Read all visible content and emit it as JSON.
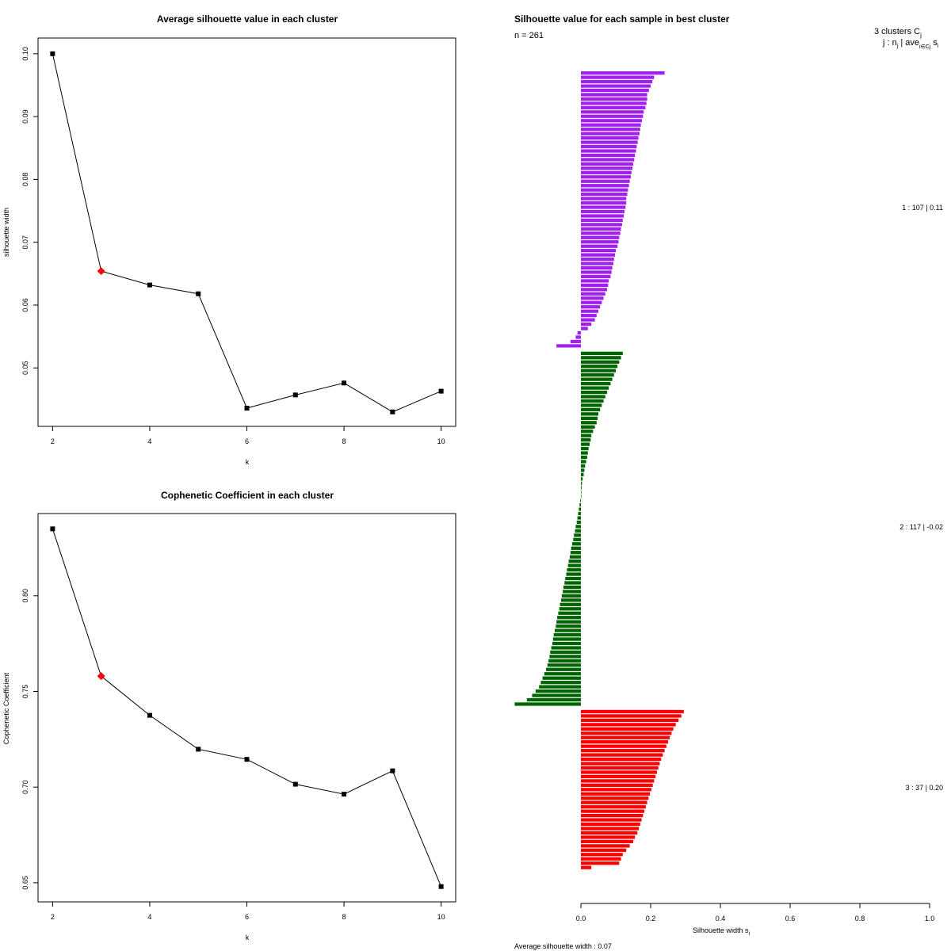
{
  "chart_data": [
    {
      "type": "line",
      "title": "Average silhouette value in each cluster",
      "xlabel": "k",
      "ylabel": "silhouette width",
      "x": [
        2,
        3,
        4,
        5,
        6,
        7,
        8,
        9,
        10
      ],
      "values": [
        0.1,
        0.0654,
        0.0632,
        0.0618,
        0.0436,
        0.0457,
        0.0476,
        0.043,
        0.0463
      ],
      "highlight_index": 1,
      "highlight_color": "#ff0000",
      "xlim": [
        1.7,
        10.3
      ],
      "ylim": [
        0.0407,
        0.1025
      ],
      "xticks": [
        2,
        4,
        6,
        8,
        10
      ],
      "xtick_labels": [
        "2",
        "4",
        "6",
        "8",
        "10"
      ],
      "yticks": [
        0.05,
        0.06,
        0.07,
        0.08,
        0.09,
        0.1
      ],
      "ytick_labels": [
        "0.05",
        "0.06",
        "0.07",
        "0.08",
        "0.09",
        "0.10"
      ]
    },
    {
      "type": "line",
      "title": "Cophenetic Coefficient in each cluster",
      "xlabel": "k",
      "ylabel": "Cophenetic Coefficient",
      "x": [
        2,
        3,
        4,
        5,
        6,
        7,
        8,
        9,
        10
      ],
      "values": [
        0.835,
        0.758,
        0.7375,
        0.7198,
        0.7145,
        0.7015,
        0.6963,
        0.7085,
        0.648
      ],
      "highlight_index": 1,
      "highlight_color": "#ff0000",
      "xlim": [
        1.7,
        10.3
      ],
      "ylim": [
        0.64,
        0.843
      ],
      "xticks": [
        2,
        4,
        6,
        8,
        10
      ],
      "xtick_labels": [
        "2",
        "4",
        "6",
        "8",
        "10"
      ],
      "yticks": [
        0.65,
        0.7,
        0.75,
        0.8
      ],
      "ytick_labels": [
        "0.65",
        "0.70",
        "0.75",
        "0.80"
      ]
    },
    {
      "type": "bar",
      "orientation": "horizontal",
      "title": "Silhouette value for each sample in best cluster",
      "n_label": "n = 261",
      "xlabel": "Silhouette width s",
      "xlabel_sub": "i",
      "xlim": [
        0,
        1
      ],
      "xticks": [
        0,
        0.2,
        0.4,
        0.6,
        0.8,
        1
      ],
      "xtick_labels": [
        "0.0",
        "0.2",
        "0.4",
        "0.6",
        "0.8",
        "1.0"
      ],
      "average_label": "Average silhouette width :  0.07",
      "header_line1": "3  clusters  C",
      "header_line1_sub": "j",
      "header_line2": "j :  n",
      "header_line2_sub": "j",
      "header_line2_rest": " | ave",
      "header_line2_sub2": "i∈Cj",
      "header_line2_end": " s",
      "header_line2_sub3": "i",
      "clusters": [
        {
          "id": 1,
          "n": 107,
          "avg": 0.11,
          "color": "#a020f0",
          "label": "1 :   107  |  0.11",
          "max": 0.24,
          "min": -0.07,
          "values": [
            0.24,
            0.21,
            0.205,
            0.2,
            0.195,
            0.19,
            0.19,
            0.188,
            0.185,
            0.18,
            0.178,
            0.175,
            0.172,
            0.17,
            0.168,
            0.165,
            0.163,
            0.16,
            0.158,
            0.155,
            0.153,
            0.15,
            0.148,
            0.145,
            0.143,
            0.14,
            0.138,
            0.135,
            0.133,
            0.13,
            0.13,
            0.128,
            0.125,
            0.123,
            0.12,
            0.118,
            0.115,
            0.113,
            0.11,
            0.108,
            0.105,
            0.1,
            0.098,
            0.095,
            0.093,
            0.09,
            0.088,
            0.085,
            0.08,
            0.078,
            0.075,
            0.07,
            0.065,
            0.06,
            0.055,
            0.05,
            0.045,
            0.04,
            0.03,
            0.02,
            -0.01,
            -0.015,
            -0.03,
            -0.07
          ]
        },
        {
          "id": 2,
          "n": 117,
          "avg": -0.02,
          "color": "#006400",
          "label": "2 :   117  |  -0.02",
          "max": 0.12,
          "min": -0.19,
          "values": [
            0.12,
            0.115,
            0.11,
            0.105,
            0.1,
            0.095,
            0.09,
            0.085,
            0.08,
            0.075,
            0.07,
            0.065,
            0.06,
            0.055,
            0.05,
            0.048,
            0.045,
            0.04,
            0.035,
            0.03,
            0.028,
            0.025,
            0.022,
            0.02,
            0.018,
            0.015,
            0.012,
            0.01,
            0.008,
            0.005,
            0.003,
            0.002,
            0.001,
            0.0,
            -0.002,
            -0.004,
            -0.006,
            -0.008,
            -0.01,
            -0.012,
            -0.015,
            -0.017,
            -0.02,
            -0.022,
            -0.025,
            -0.028,
            -0.03,
            -0.032,
            -0.035,
            -0.037,
            -0.04,
            -0.042,
            -0.045,
            -0.047,
            -0.05,
            -0.052,
            -0.055,
            -0.057,
            -0.06,
            -0.062,
            -0.065,
            -0.068,
            -0.07,
            -0.072,
            -0.075,
            -0.078,
            -0.08,
            -0.082,
            -0.085,
            -0.088,
            -0.09,
            -0.093,
            -0.096,
            -0.1,
            -0.105,
            -0.11,
            -0.115,
            -0.12,
            -0.13,
            -0.14,
            -0.155,
            -0.19
          ]
        },
        {
          "id": 3,
          "n": 37,
          "avg": 0.2,
          "color": "#ff0000",
          "label": "3 :   37  |  0.20",
          "max": 0.295,
          "min": 0.03,
          "values": [
            0.295,
            0.288,
            0.28,
            0.272,
            0.265,
            0.26,
            0.255,
            0.25,
            0.245,
            0.24,
            0.235,
            0.23,
            0.226,
            0.222,
            0.218,
            0.214,
            0.21,
            0.206,
            0.202,
            0.198,
            0.194,
            0.19,
            0.186,
            0.182,
            0.178,
            0.174,
            0.17,
            0.166,
            0.162,
            0.155,
            0.15,
            0.14,
            0.13,
            0.12,
            0.115,
            0.11,
            0.03
          ]
        }
      ]
    }
  ]
}
